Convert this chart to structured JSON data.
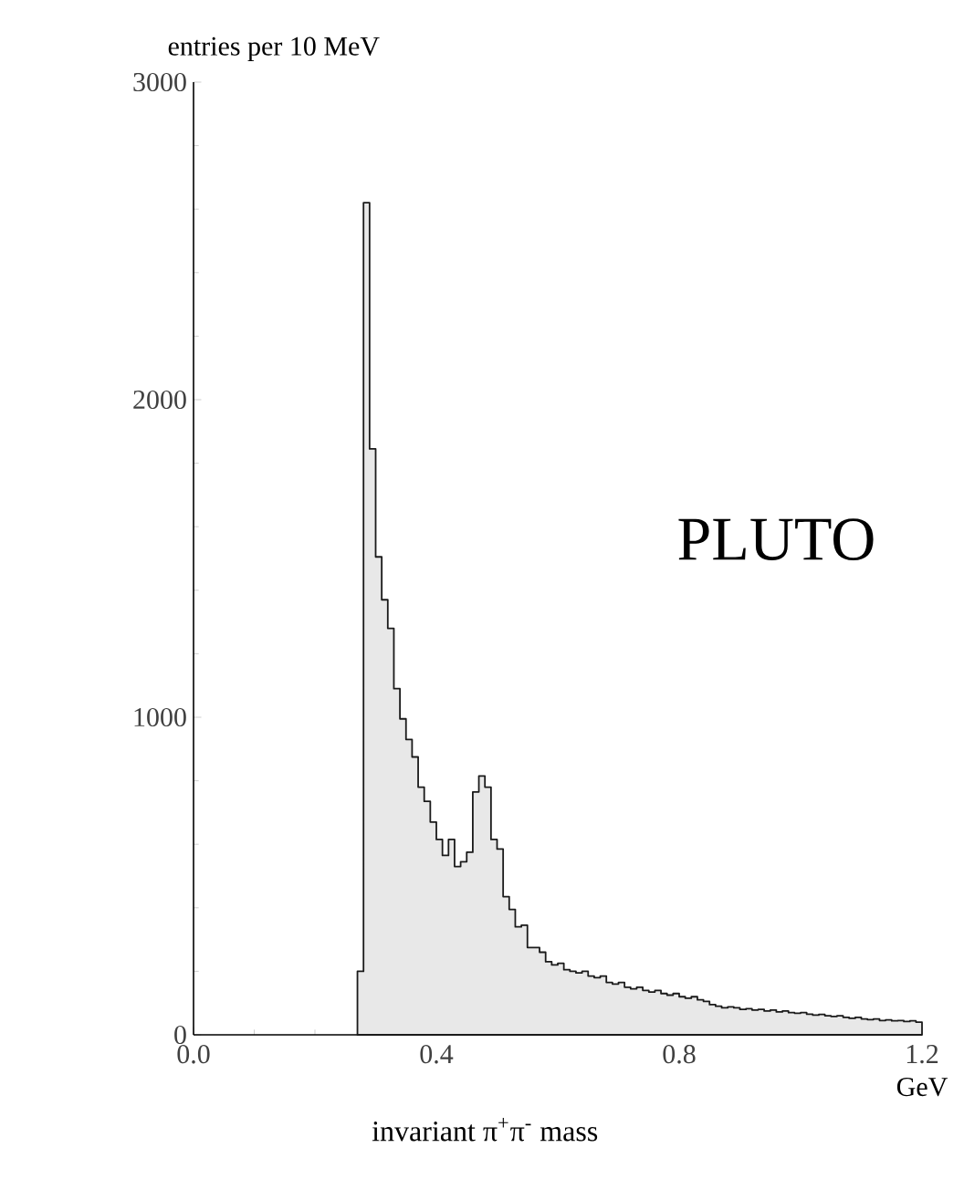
{
  "chart_data": {
    "type": "histogram",
    "ylabel": "entries per 10 MeV",
    "xlabel": "invariant π$^{+}$π$^{-}$ mass",
    "annotations": [
      "GeV",
      "PLUTO"
    ],
    "color": "#1a1a1a",
    "bins": [
      0.27,
      0.28,
      0.29,
      0.3,
      0.31,
      0.32,
      0.33,
      0.34,
      0.35,
      0.36,
      0.37,
      0.38,
      0.39,
      0.4,
      0.41,
      0.42,
      0.43,
      0.44,
      0.45,
      0.46,
      0.47,
      0.48,
      0.49,
      0.5,
      0.51,
      0.52,
      0.53,
      0.54,
      0.55,
      0.56,
      0.57,
      0.58,
      0.59,
      0.6,
      0.61,
      0.62,
      0.63,
      0.64,
      0.65,
      0.66,
      0.67,
      0.68,
      0.69,
      0.7,
      0.71,
      0.72,
      0.73,
      0.74,
      0.75,
      0.76,
      0.77,
      0.78,
      0.79,
      0.8,
      0.81,
      0.82,
      0.83,
      0.84,
      0.85,
      0.86,
      0.87,
      0.88,
      0.89,
      0.9,
      0.91,
      0.92,
      0.93,
      0.94,
      0.95,
      0.96,
      0.97,
      0.98,
      0.99,
      1.0,
      1.01,
      1.02,
      1.03,
      1.04,
      1.05,
      1.06,
      1.07,
      1.08,
      1.09,
      1.1,
      1.11,
      1.12,
      1.13,
      1.14,
      1.15,
      1.16,
      1.17,
      1.18,
      1.19,
      1.2
    ],
    "values": [
      200,
      2620,
      1845,
      1505,
      1370,
      1280,
      1090,
      995,
      930,
      875,
      780,
      735,
      670,
      615,
      565,
      615,
      530,
      545,
      575,
      765,
      815,
      780,
      615,
      585,
      435,
      395,
      340,
      345,
      275,
      275,
      260,
      230,
      220,
      225,
      205,
      200,
      195,
      200,
      185,
      180,
      185,
      165,
      160,
      165,
      150,
      145,
      150,
      140,
      135,
      140,
      130,
      125,
      130,
      120,
      115,
      120,
      110,
      105,
      95,
      90,
      85,
      88,
      85,
      80,
      82,
      78,
      80,
      75,
      78,
      72,
      75,
      70,
      68,
      70,
      65,
      62,
      64,
      60,
      58,
      60,
      55,
      52,
      55,
      50,
      48,
      50,
      45,
      47,
      44,
      45,
      42,
      44,
      40
    ],
    "xlim": [
      0,
      1.2
    ],
    "ylim": [
      0,
      3000
    ],
    "xticks": [
      {
        "value": 0,
        "label": "0.0"
      },
      0.4,
      0.8,
      1.2
    ],
    "yticks": [
      0,
      1000,
      2000,
      3000
    ],
    "grid": false
  }
}
